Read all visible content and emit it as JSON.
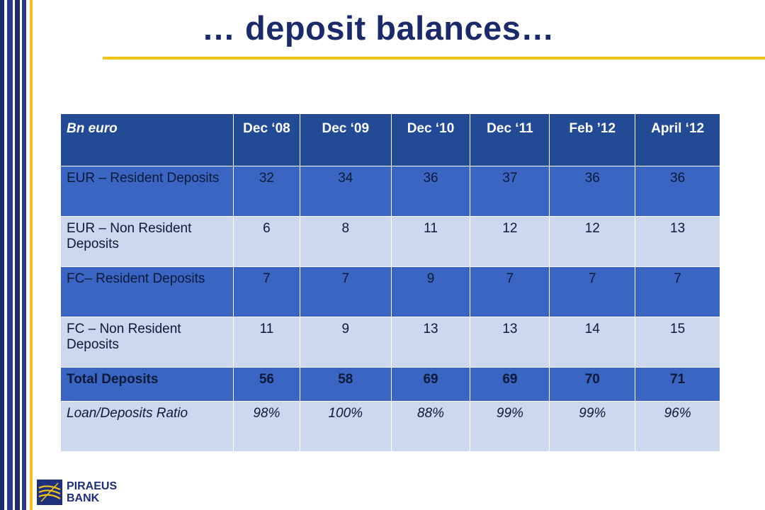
{
  "title": "… deposit balances…",
  "table": {
    "headers": [
      "Bn euro",
      "Dec ‘08",
      "Dec ‘09",
      "Dec ‘10",
      "Dec ‘11",
      "Feb ’12",
      "April ‘12"
    ],
    "rows": [
      {
        "label": "EUR – Resident Deposits",
        "values": [
          "32",
          "34",
          "36",
          "37",
          "36",
          "36"
        ]
      },
      {
        "label": "EUR – Non Resident Deposits",
        "values": [
          "6",
          "8",
          "11",
          "12",
          "12",
          "13"
        ]
      },
      {
        "label": "FC– Resident Deposits",
        "values": [
          "7",
          "7",
          "9",
          "7",
          "7",
          "7"
        ]
      },
      {
        "label": "FC – Non Resident Deposits",
        "values": [
          "11",
          "9",
          "13",
          "13",
          "14",
          "15"
        ]
      },
      {
        "label": "Total Deposits",
        "values": [
          "56",
          "58",
          "69",
          "69",
          "70",
          "71"
        ]
      },
      {
        "label": "Loan/Deposits Ratio",
        "values": [
          "98%",
          "100%",
          "88%",
          "99%",
          "99%",
          "96%"
        ]
      }
    ]
  },
  "logo": {
    "line1": "PIRAEUS",
    "line2": "BANK"
  },
  "colors": {
    "header": "#234a95",
    "dark_row": "#3a65c2",
    "light_row": "#cdd8ee",
    "accent": "#f0c419",
    "title": "#1b2a6b"
  }
}
